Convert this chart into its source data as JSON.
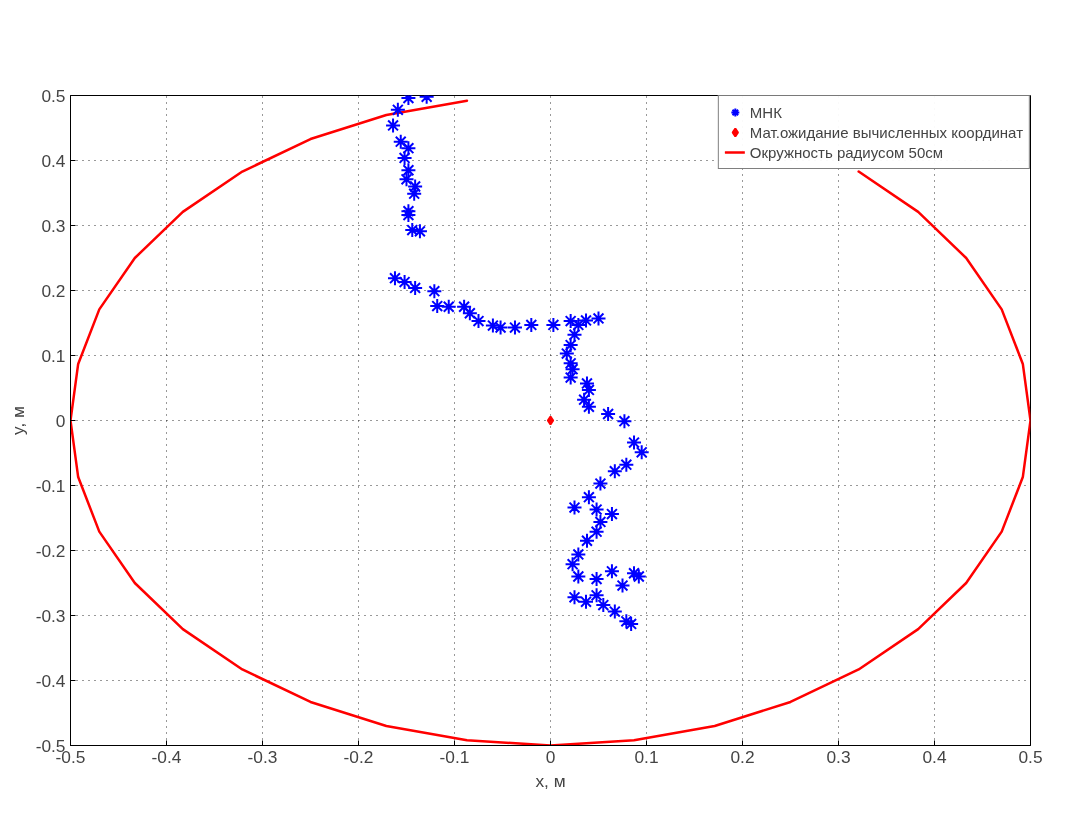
{
  "chart_data": {
    "type": "scatter",
    "xlabel": "x, м",
    "ylabel": "y, м",
    "xlim": [
      -0.5,
      0.5
    ],
    "ylim": [
      -0.5,
      0.5
    ],
    "xticks": [
      -0.5,
      -0.4,
      -0.3,
      -0.2,
      -0.1,
      0,
      0.1,
      0.2,
      0.3,
      0.4,
      0.5
    ],
    "yticks": [
      -0.5,
      -0.4,
      -0.3,
      -0.2,
      -0.1,
      0,
      0.1,
      0.2,
      0.3,
      0.4,
      0.5
    ],
    "grid": true,
    "legend": "top right",
    "series": [
      {
        "name": "МНК",
        "marker": "cross",
        "color": "#0000ff",
        "x": [
          -0.129,
          -0.148,
          -0.159,
          -0.164,
          -0.156,
          -0.148,
          -0.152,
          -0.148,
          -0.15,
          -0.141,
          -0.142,
          -0.148,
          -0.148,
          -0.144,
          -0.136,
          -0.162,
          -0.152,
          -0.141,
          -0.121,
          -0.118,
          -0.106,
          -0.09,
          -0.084,
          -0.075,
          -0.06,
          -0.052,
          -0.037,
          -0.02,
          0.003,
          0.021,
          0.037,
          0.05,
          0.029,
          0.025,
          0.021,
          0.017,
          0.021,
          0.023,
          0.021,
          0.038,
          0.04,
          0.035,
          0.04,
          0.06,
          0.077,
          0.087,
          0.095,
          0.079,
          0.067,
          0.052,
          0.04,
          0.025,
          0.048,
          0.064,
          0.052,
          0.048,
          0.038,
          0.029,
          0.023,
          0.029,
          0.048,
          0.064,
          0.087,
          0.092,
          0.075,
          0.048,
          0.025,
          0.037,
          0.055,
          0.067,
          0.079,
          0.084
        ],
        "values": [
          0.498,
          0.496,
          0.478,
          0.454,
          0.429,
          0.419,
          0.404,
          0.385,
          0.371,
          0.36,
          0.349,
          0.322,
          0.316,
          0.293,
          0.291,
          0.219,
          0.213,
          0.204,
          0.199,
          0.176,
          0.175,
          0.175,
          0.165,
          0.153,
          0.146,
          0.143,
          0.143,
          0.147,
          0.147,
          0.153,
          0.154,
          0.157,
          0.147,
          0.132,
          0.116,
          0.103,
          0.088,
          0.079,
          0.066,
          0.057,
          0.047,
          0.032,
          0.021,
          0.01,
          -0.001,
          -0.034,
          -0.049,
          -0.068,
          -0.078,
          -0.097,
          -0.118,
          -0.134,
          -0.137,
          -0.144,
          -0.156,
          -0.171,
          -0.185,
          -0.206,
          -0.221,
          -0.24,
          -0.244,
          -0.232,
          -0.235,
          -0.24,
          -0.254,
          -0.269,
          -0.272,
          -0.279,
          -0.284,
          -0.294,
          -0.309,
          -0.313
        ]
      },
      {
        "name": "Мат.ожидание вычисленных координат",
        "marker": "diamond",
        "color": "#ff0000",
        "x": [
          0
        ],
        "values": [
          0
        ]
      },
      {
        "name": "Окружность радиусом 50см",
        "type": "line",
        "marker": "none",
        "line_style": "solid",
        "color": "#ff0000",
        "x": [
          0.5,
          0.492,
          0.47,
          0.433,
          0.383,
          0.321,
          0.25,
          0.171,
          0.087,
          0,
          -0.087,
          -0.171,
          -0.25,
          -0.321,
          -0.383,
          -0.433,
          -0.47,
          -0.492,
          -0.5,
          -0.492,
          -0.47,
          -0.433,
          -0.383,
          -0.321,
          -0.25,
          -0.171,
          -0.087,
          0,
          0.087,
          0.171,
          0.25,
          0.321,
          0.383,
          0.433,
          0.47,
          0.492,
          0.5
        ],
        "values": [
          0,
          0.087,
          0.171,
          0.25,
          0.321,
          0.383,
          null,
          null,
          null,
          null,
          0.492,
          0.47,
          0.433,
          0.383,
          0.321,
          0.25,
          0.171,
          0.087,
          0,
          -0.087,
          -0.171,
          -0.25,
          -0.321,
          -0.383,
          -0.433,
          -0.47,
          -0.492,
          -0.5,
          -0.492,
          -0.47,
          -0.433,
          -0.383,
          -0.321,
          -0.25,
          -0.171,
          -0.087,
          0
        ]
      }
    ]
  }
}
